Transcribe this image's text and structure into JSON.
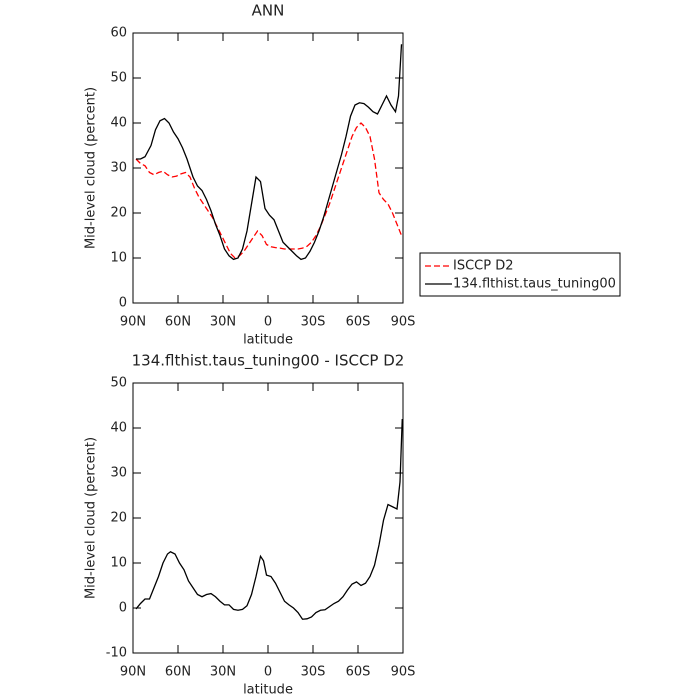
{
  "chart_data": [
    {
      "type": "line",
      "title": "ANN",
      "x_label": "latitude",
      "y_label": "Mid-level cloud (percent)",
      "xlim": [
        90,
        -90
      ],
      "xticks": [
        {
          "value": 90,
          "label": "90N"
        },
        {
          "value": 60,
          "label": "60N"
        },
        {
          "value": 30,
          "label": "30N"
        },
        0,
        {
          "value": -30,
          "label": "30S"
        },
        {
          "value": -60,
          "label": "60S"
        },
        {
          "value": -90,
          "label": "90S"
        }
      ],
      "ylim": [
        0,
        60
      ],
      "yticks": [
        0,
        10,
        20,
        30,
        40,
        50,
        60
      ],
      "legend": "right",
      "series": [
        {
          "name": "ISCCP D2",
          "color": "#ff0000",
          "dash": true,
          "x": [
            88,
            85,
            82,
            79,
            76,
            73,
            70,
            67,
            64,
            61,
            58,
            55,
            52,
            49,
            46,
            43,
            40,
            37,
            34,
            31,
            28,
            25,
            22,
            19,
            16,
            13,
            10,
            7,
            4,
            1,
            -2,
            -5,
            -8,
            -11,
            -14,
            -17,
            -20,
            -23,
            -26,
            -29,
            -32,
            -35,
            -38,
            -41,
            -44,
            -47,
            -50,
            -53,
            -56,
            -59,
            -62,
            -65,
            -68,
            -71,
            -74,
            -77,
            -80,
            -83,
            -86,
            -89
          ],
          "values": [
            32,
            31,
            30.5,
            29,
            28.5,
            29,
            29.3,
            28.5,
            28,
            28.2,
            28.7,
            29,
            28,
            25.5,
            23.5,
            22,
            20.5,
            19,
            17,
            15,
            13,
            11,
            10,
            10.5,
            11.5,
            13,
            14.5,
            16,
            15,
            13,
            12.5,
            12.3,
            12.2,
            12,
            12,
            12,
            12,
            12.2,
            12.6,
            13.5,
            15,
            17,
            19.5,
            22,
            25,
            28,
            31,
            34,
            37,
            39,
            40,
            39,
            37,
            32,
            24.5,
            23,
            22,
            20,
            17.5,
            15
          ]
        },
        {
          "name": "134.flthist.taus_tuning00",
          "color": "#000000",
          "dash": false,
          "x": [
            88,
            85,
            82,
            78,
            75,
            72,
            69,
            66,
            63,
            60,
            57,
            54,
            50,
            47,
            44,
            41,
            38,
            35,
            32,
            29,
            26,
            23,
            20,
            17,
            14,
            11,
            8,
            5,
            2,
            -1,
            -4,
            -7,
            -10,
            -13,
            -16,
            -19,
            -22,
            -25,
            -28,
            -31,
            -34,
            -37,
            -40,
            -43,
            -46,
            -49,
            -52,
            -55,
            -58,
            -61,
            -64,
            -67,
            -70,
            -73,
            -76,
            -79,
            -82,
            -85,
            -87,
            -89
          ],
          "values": [
            32,
            32,
            32.5,
            35,
            38.5,
            40.5,
            41,
            40,
            38,
            36.5,
            34.5,
            32,
            28,
            26,
            25,
            23,
            20.5,
            17.5,
            15,
            12,
            10.5,
            9.7,
            10,
            12,
            16,
            22,
            28,
            27,
            21,
            19.5,
            18.5,
            16,
            13.5,
            12.5,
            11.5,
            10.5,
            9.7,
            10,
            11.5,
            13.5,
            16,
            19,
            22.5,
            26,
            29.5,
            33,
            37,
            41.5,
            44,
            44.5,
            44.3,
            43.5,
            42.5,
            42,
            44,
            46,
            44,
            42.5,
            46,
            57.5
          ]
        }
      ]
    },
    {
      "type": "line",
      "title": "134.flthist.taus_tuning00 - ISCCP D2",
      "x_label": "latitude",
      "y_label": "Mid-level cloud (percent)",
      "xlim": [
        90,
        -90
      ],
      "xticks": [
        {
          "value": 90,
          "label": "90N"
        },
        {
          "value": 60,
          "label": "60N"
        },
        {
          "value": 30,
          "label": "30N"
        },
        0,
        {
          "value": -30,
          "label": "30S"
        },
        {
          "value": -60,
          "label": "60S"
        },
        {
          "value": -90,
          "label": "90S"
        }
      ],
      "ylim": [
        -10,
        50
      ],
      "yticks": [
        -10,
        0,
        10,
        20,
        30,
        40,
        50
      ],
      "series": [
        {
          "color": "#000000",
          "dash": false,
          "x": [
            88,
            85,
            82,
            79,
            76,
            73,
            70,
            67,
            65,
            62,
            59,
            56,
            53,
            50,
            47,
            44,
            41,
            38,
            35,
            32,
            29,
            26,
            23,
            20,
            17,
            14,
            11,
            8,
            5,
            3,
            1,
            -2,
            -5,
            -8,
            -11,
            -14,
            -17,
            -20,
            -23,
            -26,
            -29,
            -32,
            -35,
            -38,
            -41,
            -44,
            -47,
            -50,
            -53,
            -56,
            -59,
            -62,
            -65,
            -68,
            -71,
            -74,
            -77,
            -80,
            -83,
            -86,
            -88,
            -89.5
          ],
          "values": [
            -0.2,
            1,
            2,
            2,
            4.5,
            7,
            10,
            12,
            12.5,
            12,
            10,
            8.5,
            6,
            4.5,
            3,
            2.5,
            3,
            3.2,
            2.5,
            1.5,
            0.7,
            0.7,
            -0.3,
            -0.5,
            -0.3,
            0.5,
            3,
            7,
            11.5,
            10.5,
            7.3,
            7,
            5.5,
            3.5,
            1.5,
            0.7,
            0,
            -1,
            -2.5,
            -2.4,
            -2,
            -1,
            -0.5,
            -0.4,
            0.3,
            1,
            1.5,
            2.5,
            4,
            5.3,
            5.8,
            5,
            5.5,
            7,
            9.5,
            14,
            19.5,
            23,
            22.5,
            22,
            28,
            42
          ]
        }
      ]
    }
  ]
}
